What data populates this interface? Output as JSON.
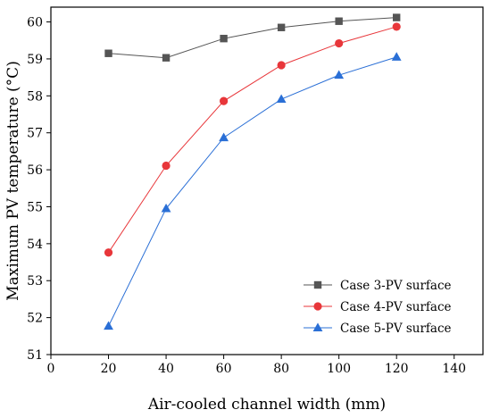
{
  "chart_data": {
    "type": "line",
    "xlabel": "Air-cooled channel width (mm)",
    "ylabel": "Maximum PV temperature (°C)",
    "xlim": [
      0,
      150
    ],
    "ylim": [
      51,
      60.4
    ],
    "xticks": [
      0,
      20,
      40,
      60,
      80,
      100,
      120,
      140
    ],
    "yticks": [
      51,
      52,
      53,
      54,
      55,
      56,
      57,
      58,
      59,
      60
    ],
    "grid": false,
    "legend_position": "bottom-right",
    "x": [
      20,
      40,
      60,
      80,
      100,
      120
    ],
    "series": [
      {
        "name": "Case 3-PV surface",
        "marker": "square",
        "color": "#555555",
        "values": [
          59.15,
          59.03,
          59.55,
          59.85,
          60.02,
          60.12
        ]
      },
      {
        "name": "Case 4-PV surface",
        "marker": "circle",
        "color": "#e8363a",
        "values": [
          53.76,
          56.11,
          57.86,
          58.83,
          59.42,
          59.87
        ]
      },
      {
        "name": "Case 5-PV surface",
        "marker": "triangle",
        "color": "#2a6fd6",
        "values": [
          51.77,
          54.95,
          56.87,
          57.91,
          58.56,
          59.05
        ]
      }
    ]
  }
}
